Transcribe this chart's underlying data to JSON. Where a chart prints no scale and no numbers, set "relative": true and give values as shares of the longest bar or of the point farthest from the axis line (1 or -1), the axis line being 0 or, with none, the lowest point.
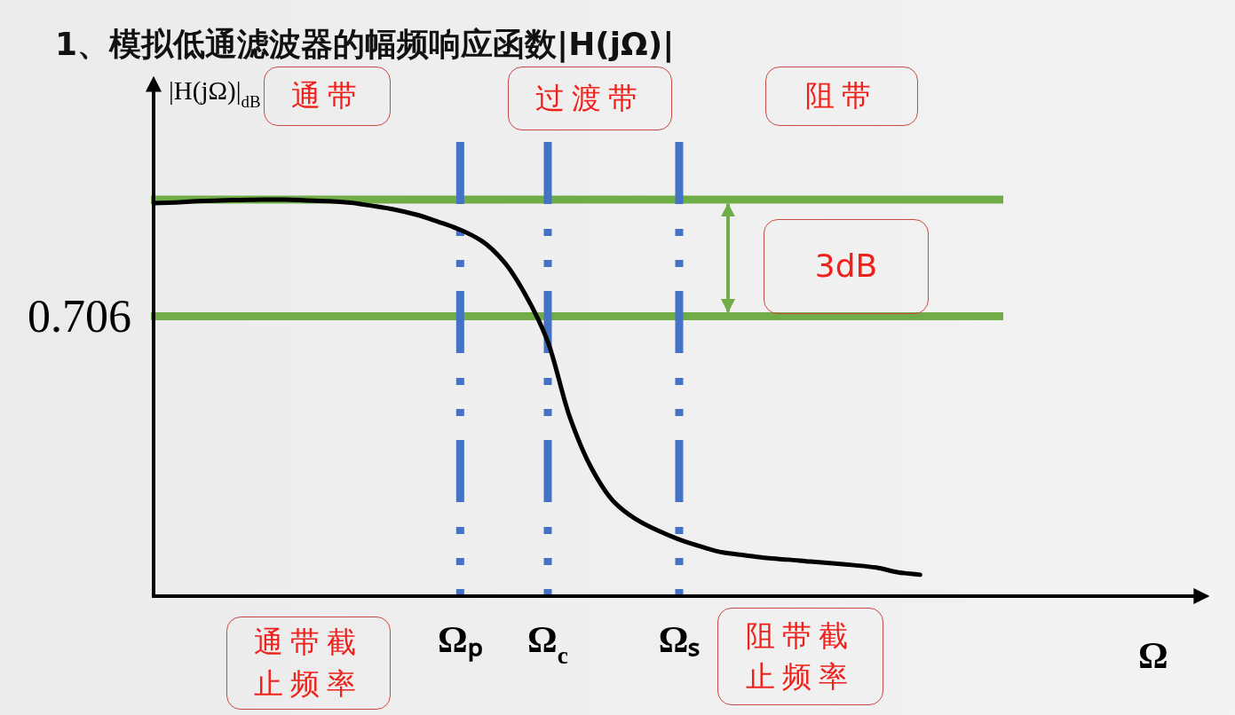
{
  "chart_data": {
    "type": "line",
    "title": "1、模拟低通滤波器的幅频响应函数|H(jΩ)|",
    "ylabel": "|H(jΩ)|$_{dB}$",
    "relative": true,
    "categories": [
      null,
      null,
      null,
      null,
      null,
      null,
      null,
      null,
      null,
      null,
      null,
      null,
      null,
      null,
      "Ωₚ",
      null,
      null,
      null,
      "Ω$_{c}$",
      null,
      null,
      null,
      null,
      null,
      "Ωₛ",
      null,
      null,
      null,
      null,
      null,
      null,
      null,
      null,
      null,
      null,
      null
    ],
    "series": [
      {
        "color": "#000000",
        "values": [
          0.991,
          0.993,
          0.996,
          0.998,
          0.999,
          1.0,
          1.0,
          0.998,
          0.996,
          0.992,
          0.984,
          0.975,
          0.962,
          0.944,
          0.924,
          0.895,
          0.843,
          0.758,
          0.642,
          0.452,
          0.322,
          0.239,
          0.195,
          0.166,
          0.143,
          0.125,
          0.11,
          0.103,
          0.096,
          0.092,
          0.087,
          0.083,
          0.078,
          0.072,
          0.06,
          0.054
        ]
      }
    ],
    "ref_lines": [
      {
        "axis": "y",
        "value": 1.0,
        "color": "#70ad47"
      },
      {
        "axis": "y",
        "value": 0.706,
        "label": "0.706",
        "color": "#70ad47"
      },
      {
        "axis": "x",
        "value": "Ωₚ",
        "color": "#4472c4",
        "line_style": "dashdot"
      },
      {
        "axis": "x",
        "value": "Ω$_{c}$",
        "color": "#4472c4",
        "line_style": "dashdot"
      },
      {
        "axis": "x",
        "value": "Ωₛ",
        "color": "#4472c4",
        "line_style": "dashdot"
      }
    ],
    "annotations": [
      "通带",
      "过渡带",
      "阻带",
      "3dB",
      "通带截止频率",
      "阻带截止频率",
      "Ω"
    ]
  }
}
